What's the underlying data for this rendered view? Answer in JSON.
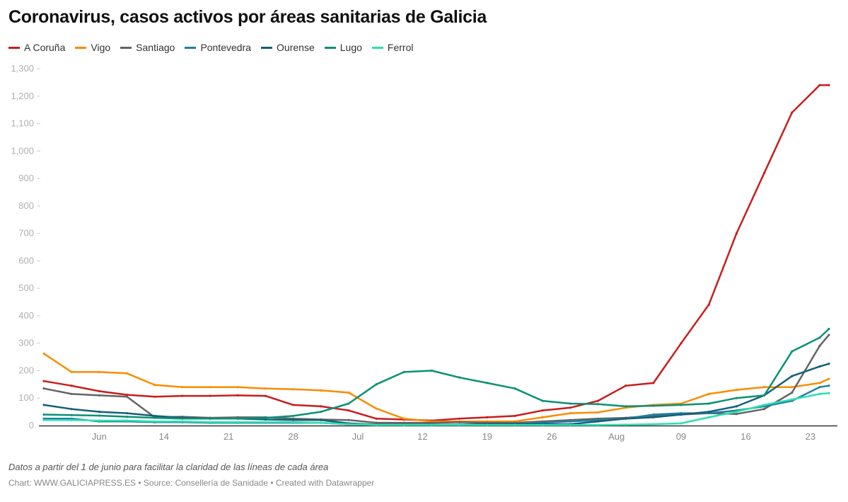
{
  "title": "Coronavirus, casos activos por áreas sanitarias de Galicia",
  "notes": "Datos a partir del 1 de junio para facilitar la claridad de las líneas de cada área",
  "credit": "Chart: WWW.GALICIAPRESS.ES • Source: Consellería de Sanidade • Created with Datawrapper",
  "chart_data": {
    "type": "line",
    "title": "Coronavirus, casos activos por áreas sanitarias de Galicia",
    "xlabel": "",
    "ylabel": "",
    "ylim": [
      0,
      1300
    ],
    "xlim": [
      "2020-06-01",
      "2020-08-25"
    ],
    "y_ticks": [
      0,
      100,
      200,
      300,
      400,
      500,
      600,
      700,
      800,
      900,
      1000,
      1100,
      1200,
      1300
    ],
    "y_tick_labels": [
      "0",
      "100",
      "200",
      "300",
      "400",
      "500",
      "600",
      "700",
      "800",
      "900",
      "1,000",
      "1,100",
      "1,200",
      "1,300"
    ],
    "x_ticks": [
      "2020-06-07",
      "2020-06-14",
      "2020-06-21",
      "2020-06-28",
      "2020-07-05",
      "2020-07-12",
      "2020-07-19",
      "2020-07-26",
      "2020-08-02",
      "2020-08-09",
      "2020-08-16",
      "2020-08-23"
    ],
    "x_tick_labels": [
      "Jun",
      "14",
      "21",
      "28",
      "Jul",
      "12",
      "19",
      "26",
      "Aug",
      "09",
      "16",
      "23"
    ],
    "grid": false,
    "legend": "top-left",
    "x": [
      "2020-06-01",
      "2020-06-04",
      "2020-06-07",
      "2020-06-10",
      "2020-06-13",
      "2020-06-16",
      "2020-06-19",
      "2020-06-22",
      "2020-06-25",
      "2020-06-28",
      "2020-07-01",
      "2020-07-04",
      "2020-07-07",
      "2020-07-10",
      "2020-07-13",
      "2020-07-16",
      "2020-07-19",
      "2020-07-22",
      "2020-07-25",
      "2020-07-28",
      "2020-07-31",
      "2020-08-03",
      "2020-08-06",
      "2020-08-09",
      "2020-08-12",
      "2020-08-15",
      "2020-08-18",
      "2020-08-21",
      "2020-08-24",
      "2020-08-25"
    ],
    "series": [
      {
        "name": "A Coruña",
        "color": "#c71e1d",
        "values": [
          162,
          145,
          125,
          112,
          105,
          108,
          108,
          110,
          108,
          75,
          70,
          55,
          25,
          22,
          18,
          25,
          30,
          35,
          55,
          65,
          90,
          145,
          155,
          300,
          440,
          700,
          920,
          1140,
          1240,
          1240
        ]
      },
      {
        "name": "Vigo",
        "color": "#fa8c00",
        "values": [
          262,
          195,
          195,
          190,
          148,
          140,
          140,
          140,
          135,
          132,
          128,
          120,
          62,
          25,
          15,
          15,
          15,
          15,
          30,
          45,
          48,
          65,
          75,
          80,
          115,
          130,
          140,
          140,
          155,
          170
        ]
      },
      {
        "name": "Santiago",
        "color": "#646464",
        "values": [
          135,
          115,
          110,
          105,
          30,
          32,
          28,
          30,
          30,
          25,
          22,
          20,
          10,
          10,
          10,
          12,
          10,
          10,
          15,
          20,
          25,
          28,
          35,
          40,
          45,
          42,
          60,
          120,
          290,
          330
        ]
      },
      {
        "name": "Pontevedra",
        "color": "#1d81a2",
        "values": [
          25,
          25,
          15,
          15,
          12,
          12,
          10,
          10,
          10,
          10,
          10,
          5,
          2,
          2,
          2,
          3,
          5,
          5,
          10,
          15,
          20,
          25,
          40,
          45,
          45,
          55,
          70,
          90,
          140,
          145
        ]
      },
      {
        "name": "Ourense",
        "color": "#15607a",
        "values": [
          75,
          60,
          50,
          45,
          35,
          28,
          25,
          25,
          22,
          20,
          20,
          8,
          3,
          3,
          3,
          3,
          5,
          5,
          5,
          5,
          15,
          25,
          30,
          40,
          50,
          70,
          110,
          180,
          215,
          225
        ]
      },
      {
        "name": "Lugo",
        "color": "#0b9174",
        "values": [
          40,
          38,
          36,
          32,
          28,
          25,
          25,
          25,
          28,
          35,
          50,
          80,
          150,
          195,
          200,
          175,
          155,
          135,
          90,
          80,
          78,
          70,
          72,
          75,
          80,
          100,
          110,
          270,
          320,
          352
        ]
      },
      {
        "name": "Ferrol",
        "color": "#2de0b0",
        "values": [
          20,
          20,
          18,
          18,
          15,
          15,
          12,
          12,
          12,
          12,
          10,
          5,
          2,
          2,
          2,
          2,
          2,
          2,
          2,
          2,
          2,
          3,
          5,
          8,
          30,
          50,
          75,
          95,
          115,
          118
        ]
      }
    ]
  }
}
